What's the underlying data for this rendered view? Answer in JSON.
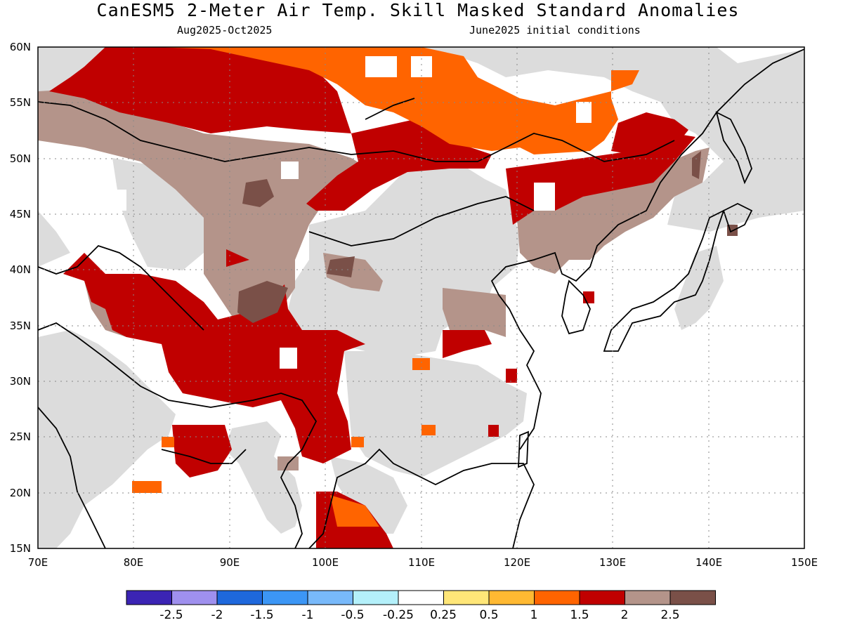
{
  "title": "CanESM5 2-Meter Air Temp. Skill Masked Standard Anomalies",
  "subtitle_period": "Aug2025-Oct2025",
  "subtitle_ic": "June2025 initial conditions",
  "map": {
    "lon_range": [
      70,
      150
    ],
    "lat_range": [
      15,
      60
    ],
    "lat_labels": [
      "60N",
      "55N",
      "50N",
      "45N",
      "40N",
      "35N",
      "30N",
      "25N",
      "20N",
      "15N"
    ],
    "lon_labels": [
      "70E",
      "80E",
      "90E",
      "100E",
      "110E",
      "120E",
      "130E",
      "140E",
      "150E"
    ],
    "gridlines": "dotted",
    "masked_color": "#dcdcdc",
    "coastline_color": "#000000"
  },
  "legend": {
    "colors": [
      "#3b24b4",
      "#9f90ee",
      "#1e68dc",
      "#3c96f5",
      "#78b9fa",
      "#b4f0fa",
      "#ffffff",
      "#ffe678",
      "#ffb932",
      "#ff6400",
      "#c00000",
      "#b4948a",
      "#7a5048"
    ],
    "labels": [
      "-2.5",
      "-2",
      "-1.5",
      "-1",
      "-0.5",
      "-0.25",
      "0.25",
      "0.5",
      "1",
      "1.5",
      "2",
      "2.5"
    ]
  }
}
